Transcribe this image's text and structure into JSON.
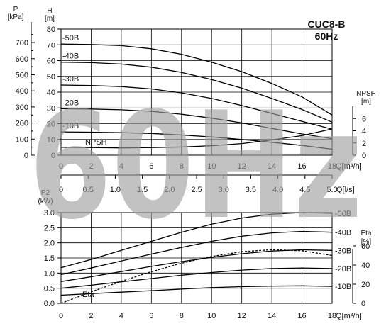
{
  "chart_data": {
    "type": "line",
    "title": "CUC8-B",
    "subtitle": "60Hz",
    "watermark": "60Hz",
    "top_panel": {
      "grid": true,
      "x_axis": {
        "label": "Q[m³/h]",
        "range": [
          0,
          18
        ],
        "ticks": [
          "0",
          "2",
          "4",
          "6",
          "8",
          "10",
          "12",
          "14",
          "16",
          "18"
        ]
      },
      "x2_axis": {
        "label": "Q[l/s]",
        "range": [
          0,
          5
        ],
        "ticks": [
          "0",
          "0.5",
          "1.0",
          "1.5",
          "2.0",
          "2.5",
          "3.0",
          "3.5",
          "4.0",
          "4.5",
          "5.0"
        ]
      },
      "y_axis": {
        "title": "H",
        "unit": "[m]",
        "range": [
          0,
          80
        ],
        "ticks": [
          "0",
          "10",
          "20",
          "30",
          "40",
          "50",
          "60",
          "70",
          "80"
        ]
      },
      "y_pressure_axis": {
        "title": "P",
        "unit": "[kPa]",
        "range": [
          0,
          784
        ],
        "ticks": [
          "0",
          "100",
          "200",
          "300",
          "400",
          "500",
          "600",
          "700"
        ]
      },
      "y_npsh_axis": {
        "title": "NPSH",
        "unit": "[m]",
        "range": [
          0,
          8
        ],
        "ticks": [
          "0",
          "2",
          "4",
          "6"
        ]
      },
      "series": [
        {
          "name": "-50B",
          "x": [
            0,
            2,
            4,
            6,
            8,
            10,
            12,
            14,
            16,
            18
          ],
          "y": [
            70.5,
            70.2,
            69.5,
            67.5,
            64.0,
            59.0,
            53.0,
            45.5,
            37.0,
            25.5
          ]
        },
        {
          "name": "-40B",
          "x": [
            0,
            2,
            4,
            6,
            8,
            10,
            12,
            14,
            16,
            18
          ],
          "y": [
            59.0,
            58.7,
            57.8,
            55.8,
            52.5,
            48.0,
            42.5,
            36.0,
            29.0,
            21.0
          ]
        },
        {
          "name": "-30B",
          "x": [
            0,
            2,
            4,
            6,
            8,
            10,
            12,
            14,
            16,
            18
          ],
          "y": [
            44.5,
            44.2,
            43.5,
            42.0,
            39.5,
            36.0,
            31.5,
            26.5,
            21.5,
            16.5
          ]
        },
        {
          "name": "-20B",
          "x": [
            0,
            2,
            4,
            6,
            8,
            10,
            12,
            14,
            16,
            18
          ],
          "y": [
            29.5,
            29.3,
            28.8,
            27.8,
            26.0,
            23.5,
            20.5,
            17.0,
            13.5,
            10.5
          ]
        },
        {
          "name": "-10B",
          "x": [
            0,
            2,
            4,
            6,
            8,
            10,
            12,
            14,
            16,
            18
          ],
          "y": [
            14.8,
            14.6,
            14.3,
            13.8,
            12.8,
            11.6,
            10.0,
            8.2,
            6.2,
            3.8
          ]
        },
        {
          "name": "NPSH",
          "axis": "npsh",
          "x": [
            0,
            2,
            4,
            6,
            8,
            10,
            12,
            14,
            16,
            18
          ],
          "y": [
            1.3,
            1.25,
            1.2,
            1.25,
            1.35,
            1.55,
            1.9,
            2.5,
            3.2,
            4.3
          ]
        }
      ]
    },
    "bottom_panel": {
      "grid": true,
      "x_axis": {
        "label": "Q[m³/h]",
        "range": [
          0,
          18
        ],
        "ticks": [
          "0",
          "2",
          "4",
          "6",
          "8",
          "10",
          "12",
          "14",
          "16",
          "18"
        ]
      },
      "y_axis": {
        "title": "P2",
        "unit": "(kW)",
        "range": [
          0,
          3.0
        ],
        "ticks": [
          "0.0",
          "0.5",
          "1.0",
          "1.5",
          "2.0",
          "2.5",
          "3.0"
        ]
      },
      "y_eta_axis": {
        "title": "Eta",
        "unit": "[%]",
        "range": [
          0,
          80
        ],
        "ticks": [
          "0",
          "20",
          "40",
          "60"
        ]
      },
      "series": [
        {
          "name": "-50B",
          "x": [
            0,
            2,
            4,
            6,
            8,
            10,
            12,
            14,
            16,
            18
          ],
          "y": [
            1.18,
            1.45,
            1.75,
            2.05,
            2.35,
            2.62,
            2.82,
            2.95,
            3.0,
            2.98
          ]
        },
        {
          "name": "-40B",
          "x": [
            0,
            2,
            4,
            6,
            8,
            10,
            12,
            14,
            16,
            18
          ],
          "y": [
            0.95,
            1.17,
            1.4,
            1.63,
            1.85,
            2.05,
            2.22,
            2.33,
            2.38,
            2.35
          ]
        },
        {
          "name": "-30B",
          "x": [
            0,
            2,
            4,
            6,
            8,
            10,
            12,
            14,
            16,
            18
          ],
          "y": [
            0.72,
            0.88,
            1.05,
            1.22,
            1.38,
            1.52,
            1.64,
            1.73,
            1.77,
            1.75
          ]
        },
        {
          "name": "-20B",
          "x": [
            0,
            2,
            4,
            6,
            8,
            10,
            12,
            14,
            16,
            18
          ],
          "y": [
            0.5,
            0.6,
            0.71,
            0.82,
            0.93,
            1.02,
            1.1,
            1.15,
            1.17,
            1.15
          ]
        },
        {
          "name": "-10B",
          "x": [
            0,
            2,
            4,
            6,
            8,
            10,
            12,
            14,
            16,
            18
          ],
          "y": [
            0.27,
            0.32,
            0.37,
            0.42,
            0.47,
            0.52,
            0.55,
            0.57,
            0.58,
            0.56
          ]
        },
        {
          "name": "Eta",
          "axis": "eta",
          "style": "dashed",
          "x": [
            0,
            2,
            4,
            6,
            8,
            10,
            12,
            14,
            16,
            18
          ],
          "y": [
            0,
            12,
            23,
            33,
            42,
            49,
            54,
            56,
            55,
            50
          ]
        }
      ]
    }
  }
}
